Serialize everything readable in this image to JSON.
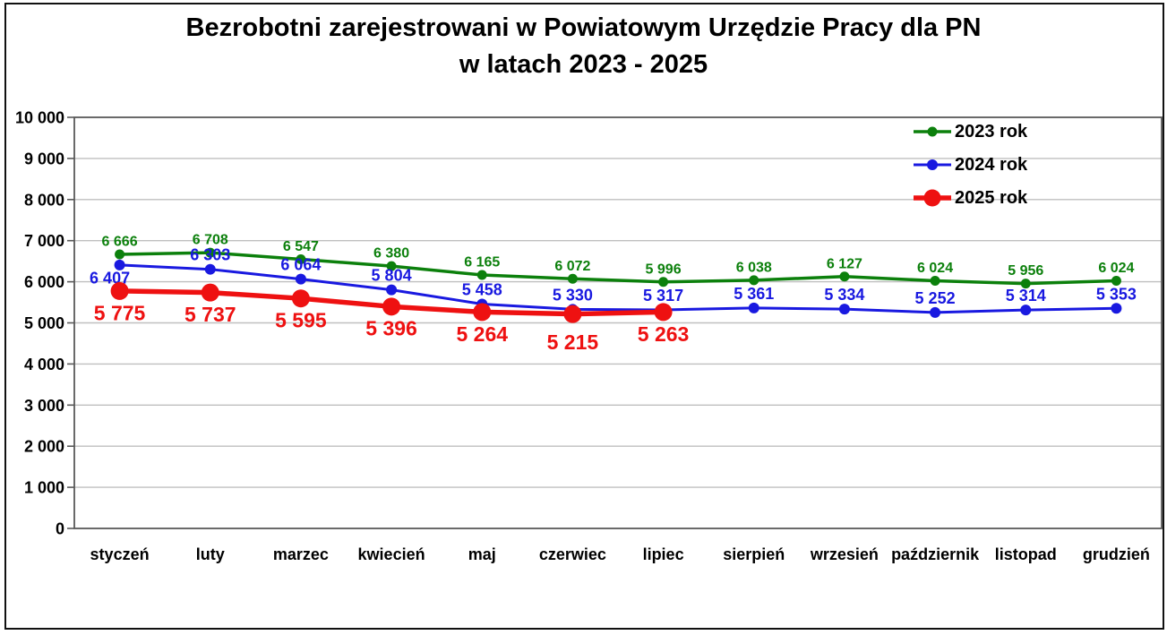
{
  "title": {
    "line1": "Bezrobotni zarejestrowani w Powiatowym Urzędzie Pracy dla PN",
    "line2": "w latach 2023 - 2025"
  },
  "chart_data": {
    "type": "line",
    "title": "Bezrobotni zarejestrowani w Powiatowym Urzędzie Pracy dla PN w latach 2023 - 2025",
    "categories": [
      "styczeń",
      "luty",
      "marzec",
      "kwiecień",
      "maj",
      "czerwiec",
      "lipiec",
      "sierpień",
      "wrzesień",
      "październik",
      "listopad",
      "grudzień"
    ],
    "series": [
      {
        "name": "2023 rok",
        "color": "#0c800c",
        "values": [
          6666,
          6708,
          6547,
          6380,
          6165,
          6072,
          5996,
          6038,
          6127,
          6024,
          5956,
          6024
        ],
        "labels": [
          "6 666",
          "6 708",
          "6 547",
          "6 380",
          "6 165",
          "6 072",
          "5 996",
          "6 038",
          "6 127",
          "6 024",
          "5 956",
          "6 024"
        ],
        "label_side": "above",
        "label_font": 16,
        "marker_radius": 5.5,
        "line_width": 3.5
      },
      {
        "name": "2024 rok",
        "color": "#1919e0",
        "values": [
          6407,
          6303,
          6064,
          5804,
          5458,
          5330,
          5317,
          5361,
          5334,
          5252,
          5314,
          5353
        ],
        "labels": [
          "6 407",
          "6 303",
          "6 064",
          "5 804",
          "5 458",
          "5 330",
          "5 317",
          "5 361",
          "5 334",
          "5 252",
          "5 314",
          "5 353"
        ],
        "label_side": "above",
        "label_font": 18,
        "marker_radius": 6,
        "line_width": 3,
        "label_overrides": {
          "0": {
            "side": "below",
            "dx": -11,
            "dy": -4
          }
        }
      },
      {
        "name": "2025 rok",
        "color": "#ee1111",
        "values": [
          5775,
          5737,
          5595,
          5396,
          5264,
          5215,
          5263
        ],
        "labels": [
          "5 775",
          "5 737",
          "5 595",
          "5 396",
          "5 264",
          "5 215",
          "5 263"
        ],
        "label_side": "below",
        "label_font": 23,
        "marker_radius": 10,
        "line_width": 5.5,
        "label_overrides": {
          "5": {
            "dy": 7
          }
        }
      }
    ],
    "y_axis": {
      "min": 0,
      "max": 10000,
      "step": 1000,
      "tick_labels": [
        "0",
        "1 000",
        "2 000",
        "3 000",
        "4 000",
        "5 000",
        "6 000",
        "7 000",
        "8 000",
        "9 000",
        "10 000"
      ]
    },
    "grid": true,
    "legend_position": "top-right",
    "grid_color": "#bfbfbf",
    "axis_color": "#595959",
    "text_color": "#000000"
  }
}
